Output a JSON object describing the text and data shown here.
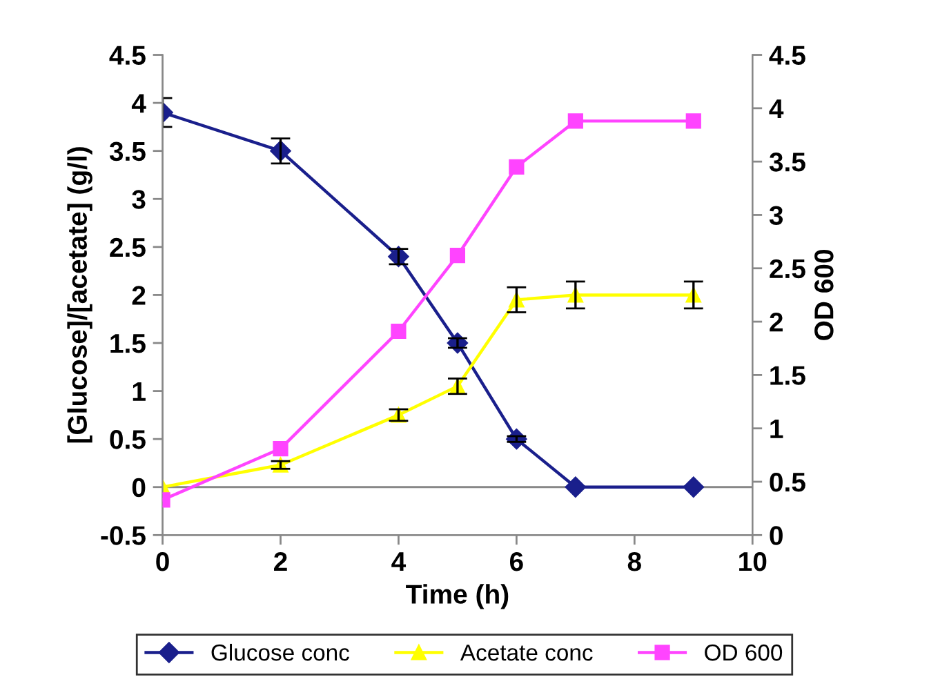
{
  "chart_data": {
    "type": "line",
    "xlabel": "Time (h)",
    "ylabel": "[Glucose]/[acetate] (g/l)",
    "y2label": "OD 600",
    "x": [
      0,
      2,
      4,
      5,
      6,
      7,
      9
    ],
    "xlim": [
      0,
      10
    ],
    "xticks": [
      0,
      2,
      4,
      6,
      8,
      10
    ],
    "ylim": [
      -0.5,
      4.5
    ],
    "yticks": [
      -0.5,
      0,
      0.5,
      1,
      1.5,
      2,
      2.5,
      3,
      3.5,
      4,
      4.5
    ],
    "y2lim": [
      0,
      4.5
    ],
    "y2ticks": [
      0,
      0.5,
      1,
      1.5,
      2,
      2.5,
      3,
      3.5,
      4,
      4.5
    ],
    "legend": "bottom",
    "ref_lines": [
      {
        "axis": "y",
        "value": 0,
        "color": "#888888"
      }
    ],
    "series": [
      {
        "name": "Glucose conc",
        "color": "#1a1f8c",
        "marker": "diamond",
        "values": [
          3.9,
          3.5,
          2.4,
          1.5,
          0.5,
          0,
          0
        ],
        "errors": [
          0.15,
          0.13,
          0.08,
          0.05,
          0.03,
          null,
          null
        ]
      },
      {
        "name": "Acetate conc",
        "color": "#ffff00",
        "marker": "triangle",
        "values": [
          0,
          0.23,
          0.75,
          1.05,
          1.95,
          2.0,
          2.0
        ],
        "errors": [
          null,
          0.04,
          0.06,
          0.08,
          0.13,
          0.14,
          0.14
        ]
      },
      {
        "name": "OD 600",
        "color": "#ff44ff",
        "marker": "square",
        "axis": "y2",
        "values": [
          0.33,
          0.81,
          1.91,
          2.62,
          3.45,
          3.88,
          3.88
        ]
      }
    ]
  }
}
